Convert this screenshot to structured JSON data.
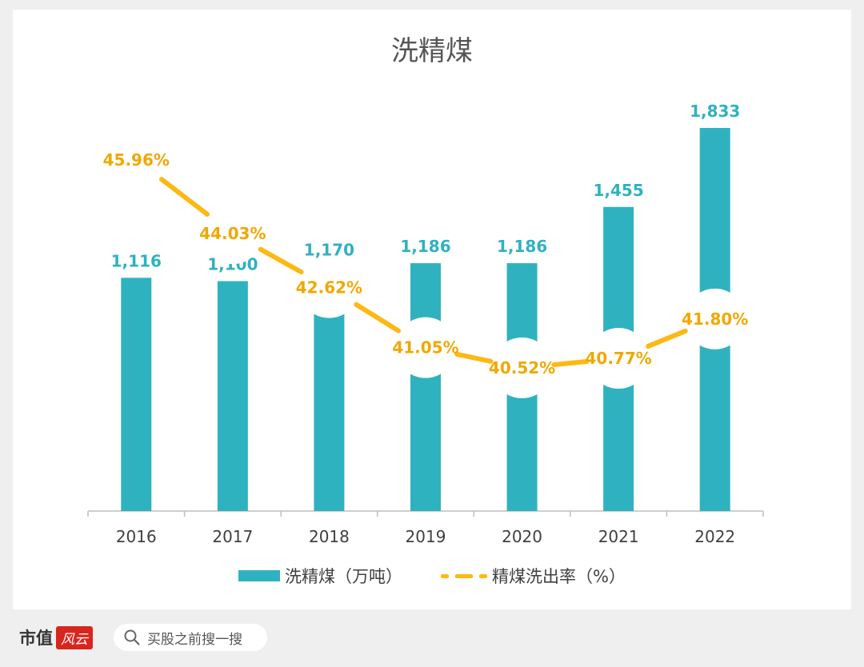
{
  "chart_data": {
    "type": "bar+line",
    "title": "洗精煤",
    "categories": [
      "2016",
      "2017",
      "2018",
      "2019",
      "2020",
      "2021",
      "2022"
    ],
    "series": [
      {
        "name": "洗精煤（万吨）",
        "type": "bar",
        "values": [
          1116,
          1100,
          1170,
          1186,
          1186,
          1455,
          1833
        ],
        "labels": [
          "1,116",
          "1,100",
          "1,170",
          "1,186",
          "1,186",
          "1,455",
          "1,833"
        ]
      },
      {
        "name": "精煤洗出率（%）",
        "type": "line",
        "values": [
          45.96,
          44.03,
          42.62,
          41.05,
          40.52,
          40.77,
          41.8
        ],
        "labels": [
          "45.96%",
          "44.03%",
          "42.62%",
          "41.05%",
          "40.52%",
          "40.77%",
          "41.80%"
        ]
      }
    ],
    "ylim_bar": [
      0,
      1833
    ],
    "ylim_line": [
      36,
      48
    ],
    "legend_position": "bottom"
  },
  "colors": {
    "bar": "#2fb2bf",
    "line": "#fdb813",
    "bar_label": "#2fb2bf",
    "line_label": "#f0a800"
  },
  "footer": {
    "brand": "市值",
    "seal": "风云",
    "search_placeholder": "买股之前搜一搜",
    "search_icon": "search-icon"
  }
}
